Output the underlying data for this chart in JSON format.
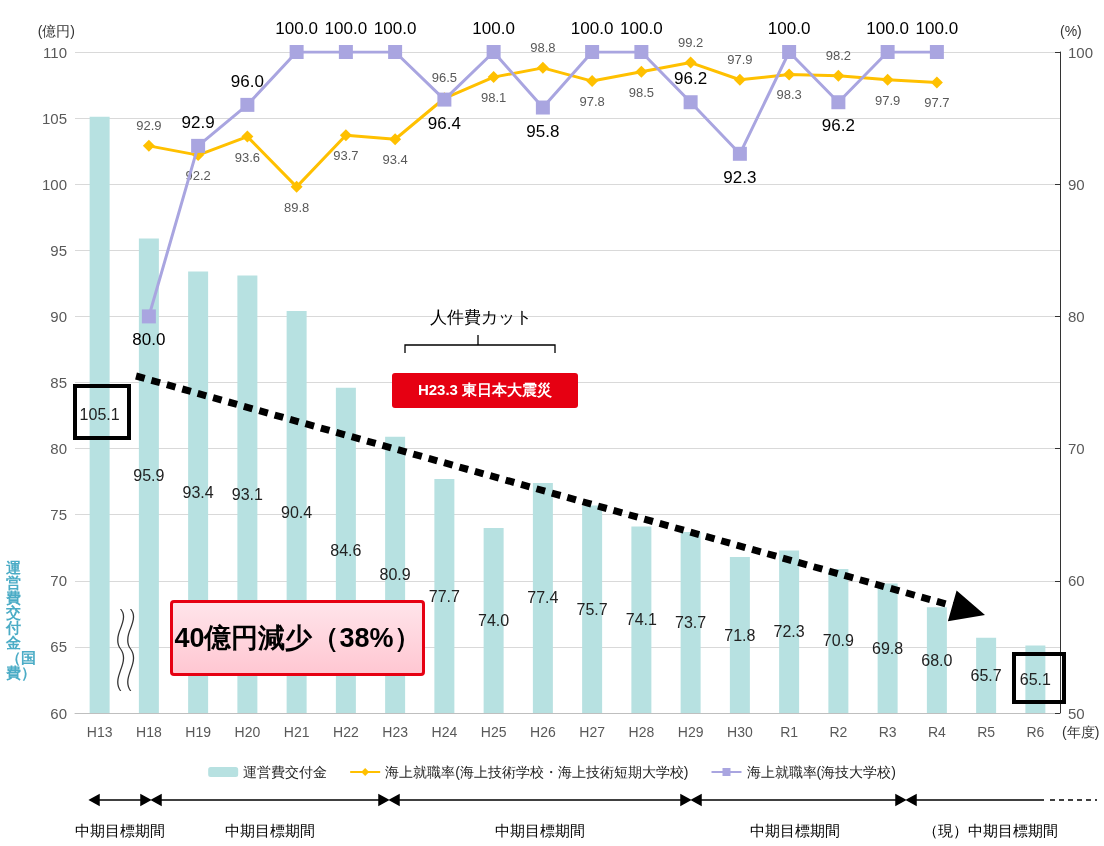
{
  "chart_data": {
    "type": "bar",
    "xlabel": "(年度)",
    "ylabel": "(億円)",
    "y2label": "(%)",
    "categories": [
      "H13",
      "H18",
      "H19",
      "H20",
      "H21",
      "H22",
      "H23",
      "H24",
      "H25",
      "H26",
      "H27",
      "H28",
      "H29",
      "H30",
      "R1",
      "R2",
      "R3",
      "R4",
      "R5",
      "R6"
    ],
    "series": [
      {
        "name": "運営費交付金",
        "type": "bar",
        "color": "#b7e1e1",
        "values": [
          105.1,
          95.9,
          93.4,
          93.1,
          90.4,
          84.6,
          80.9,
          77.7,
          74.0,
          77.4,
          75.7,
          74.1,
          73.7,
          71.8,
          72.3,
          70.9,
          69.8,
          68.0,
          65.7,
          65.1
        ],
        "value_labels": [
          "105.1",
          "95.9",
          "93.4",
          "93.1",
          "90.4",
          "84.6",
          "80.9",
          "77.7",
          "74.0",
          "77.4",
          "75.7",
          "74.1",
          "73.7",
          "71.8",
          "72.3",
          "70.9",
          "69.8",
          "68.0",
          "65.7",
          "65.1"
        ]
      },
      {
        "name": "海上就職率(海上技術学校・海上技術短期大学校)",
        "type": "line",
        "axis": "y2",
        "marker": "diamond",
        "color": "#ffc000",
        "values": [
          null,
          92.9,
          92.2,
          93.6,
          89.8,
          93.7,
          93.4,
          96.5,
          98.1,
          98.8,
          97.8,
          98.5,
          99.2,
          97.9,
          98.3,
          98.2,
          97.9,
          97.7,
          null,
          null
        ],
        "value_labels": [
          null,
          "92.9",
          "92.2",
          "93.6",
          "89.8",
          "93.7",
          "93.4",
          "96.5",
          "98.1",
          "98.8",
          "97.8",
          "98.5",
          "99.2",
          "97.9",
          "98.3",
          "98.2",
          "97.9",
          "97.7",
          null,
          null
        ]
      },
      {
        "name": "海上就職率(海技大学校)",
        "type": "line",
        "axis": "y2",
        "marker": "square",
        "color": "#a9a5e0",
        "values": [
          null,
          80.0,
          92.9,
          96.0,
          100,
          100,
          100,
          96.4,
          100,
          95.8,
          100,
          100,
          96.2,
          92.3,
          100,
          96.2,
          100,
          100,
          null,
          null
        ],
        "value_labels": [
          null,
          "80.0",
          "92.9",
          "96.0",
          "100.0",
          "100.0",
          "100.0",
          "96.4",
          "100.0",
          "95.8",
          "100.0",
          "100.0",
          "96.2",
          "92.3",
          "100.0",
          "96.2",
          "100.0",
          "100.0",
          null,
          null
        ]
      }
    ],
    "ylim": [
      60,
      110
    ],
    "yticks": [
      60,
      65,
      70,
      75,
      80,
      85,
      90,
      95,
      100,
      105,
      110
    ],
    "y2lim": [
      50,
      100
    ],
    "y2ticks": [
      50,
      60,
      70,
      80,
      90,
      100
    ],
    "grid": "y",
    "legend": "bottom",
    "annotations": [
      "運営費交付金（国費）",
      "人件費カット",
      "H23.3 東日本大震災",
      "40億円減少（38%）",
      "中期目標期間",
      "中期目標期間",
      "中期目標期間",
      "中期目標期間",
      "（現）中期目標期間"
    ]
  }
}
